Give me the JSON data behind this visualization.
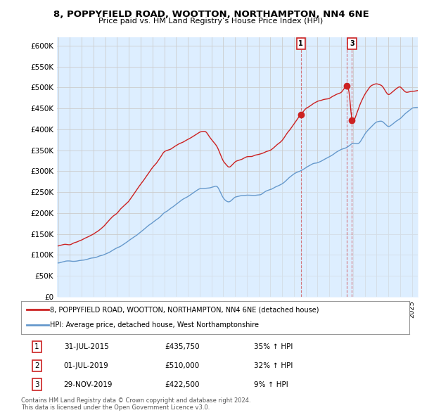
{
  "title": "8, POPPYFIELD ROAD, WOOTTON, NORTHAMPTON, NN4 6NE",
  "subtitle": "Price paid vs. HM Land Registry’s House Price Index (HPI)",
  "ylim": [
    0,
    620000
  ],
  "yticks": [
    0,
    50000,
    100000,
    150000,
    200000,
    250000,
    300000,
    350000,
    400000,
    450000,
    500000,
    550000,
    600000
  ],
  "ytick_labels": [
    "£0",
    "£50K",
    "£100K",
    "£150K",
    "£200K",
    "£250K",
    "£300K",
    "£350K",
    "£400K",
    "£450K",
    "£500K",
    "£550K",
    "£600K"
  ],
  "xlim_start": 1994.9,
  "xlim_end": 2025.5,
  "red_color": "#cc2222",
  "blue_color": "#6699cc",
  "blue_fill": "#ddeeff",
  "marker_color": "#cc2222",
  "sales": [
    {
      "num": 1,
      "date": "31-JUL-2015",
      "price": 435750,
      "pct": "35%",
      "year": 2015.58
    },
    {
      "num": 2,
      "date": "01-JUL-2019",
      "price": 510000,
      "pct": "32%",
      "year": 2019.5
    },
    {
      "num": 3,
      "date": "29-NOV-2019",
      "price": 422500,
      "pct": "9%",
      "year": 2019.92
    }
  ],
  "legend_line1": "8, POPPYFIELD ROAD, WOOTTON, NORTHAMPTON, NN4 6NE (detached house)",
  "legend_line2": "HPI: Average price, detached house, West Northamptonshire",
  "footer": "Contains HM Land Registry data © Crown copyright and database right 2024.\nThis data is licensed under the Open Government Licence v3.0.",
  "table_rows": [
    [
      "1",
      "31-JUL-2015",
      "£435,750",
      "35% ↑ HPI"
    ],
    [
      "2",
      "01-JUL-2019",
      "£510,000",
      "32% ↑ HPI"
    ],
    [
      "3",
      "29-NOV-2019",
      "£422,500",
      "9% ↑ HPI"
    ]
  ],
  "background_color": "#ffffff",
  "grid_color": "#cccccc"
}
